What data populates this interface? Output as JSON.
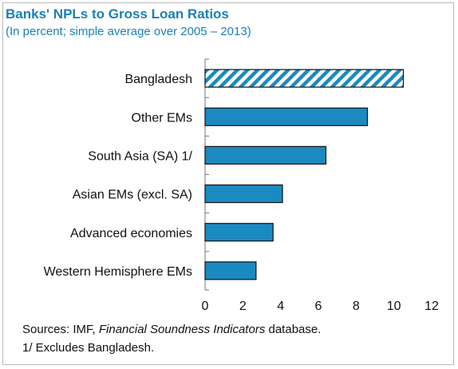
{
  "chart_data": {
    "type": "bar",
    "orientation": "horizontal",
    "title": "Banks' NPLs to Gross Loan Ratios",
    "subtitle": "(In percent; simple average over 2005 – 2013)",
    "categories": [
      "Bangladesh",
      "Other EMs",
      "South Asia (SA) 1/",
      "Asian EMs (excl. SA)",
      "Advanced economies",
      "Western Hemisphere EMs"
    ],
    "values": [
      10.5,
      8.6,
      6.4,
      4.1,
      3.6,
      2.7
    ],
    "highlight": "Bangladesh",
    "xlim": [
      0,
      12
    ],
    "xticks": [
      0,
      2,
      4,
      6,
      8,
      10,
      12
    ],
    "grid": false,
    "colors": {
      "bar": "#1b8ac0",
      "highlight_stripe": "#1b8ac0",
      "outline": "#111111",
      "title": "#1b7fb5"
    }
  },
  "source": {
    "prefix": "Sources: IMF, ",
    "italic": "Financial Soundness Indicators",
    "suffix": " database.",
    "note": "1/ Excludes Bangladesh."
  }
}
